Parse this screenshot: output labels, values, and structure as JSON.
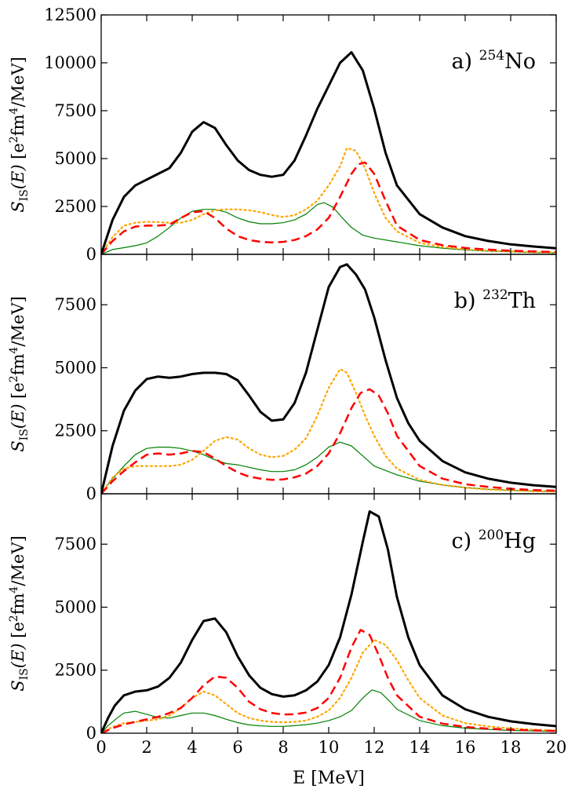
{
  "chart_data": {
    "type": "line",
    "xlabel": "E [MeV]",
    "x_ticks": [
      "0",
      "2",
      "4",
      "6",
      "8",
      "10",
      "12",
      "14",
      "16",
      "18",
      "20"
    ],
    "xlim": [
      0,
      20
    ],
    "ylabel": {
      "main": "S",
      "sub": "IS",
      "arg": "(E)",
      "units_open": "[e",
      "units_exp1": "2",
      "units_mid": "fm",
      "units_exp2": "4",
      "units_close": "/MeV]"
    },
    "series_styles": [
      {
        "name": "total",
        "color": "#000000",
        "dash": "solid"
      },
      {
        "name": "dotted-orange",
        "color": "#ffa500",
        "dash": "dotted"
      },
      {
        "name": "dashed-red",
        "color": "#ff0000",
        "dash": "dashed"
      },
      {
        "name": "thin-green",
        "color": "#008000",
        "dash": "solid"
      }
    ],
    "panels": [
      {
        "label_prefix": "a)",
        "label_mass": "254",
        "label_element": "No",
        "ylim": [
          0,
          12500
        ],
        "y_ticks": [
          "0",
          "2500",
          "5000",
          "7500",
          "10000",
          "12500"
        ],
        "series": [
          {
            "name": "total",
            "x": [
              0,
              0.5,
              1,
              1.5,
              2,
              2.5,
              3,
              3.5,
              4,
              4.5,
              5,
              5.5,
              6,
              6.5,
              7,
              7.5,
              8,
              8.5,
              9,
              9.5,
              10,
              10.5,
              11,
              11.5,
              12,
              12.5,
              13,
              14,
              15,
              16,
              17,
              18,
              19,
              20
            ],
            "y": [
              0,
              1800,
              3000,
              3600,
              3900,
              4200,
              4500,
              5300,
              6400,
              6900,
              6600,
              5700,
              4900,
              4400,
              4150,
              4050,
              4150,
              4900,
              6200,
              7600,
              8800,
              10000,
              10550,
              9600,
              7600,
              5300,
              3600,
              2100,
              1400,
              950,
              700,
              520,
              410,
              320
            ]
          },
          {
            "name": "dotted-orange",
            "x": [
              0,
              0.5,
              1,
              1.5,
              2,
              2.5,
              3,
              3.5,
              4,
              4.5,
              5,
              5.5,
              6,
              6.5,
              7,
              7.5,
              8,
              8.5,
              9,
              9.5,
              10,
              10.5,
              10.8,
              11.2,
              11.6,
              12,
              12.5,
              13,
              14,
              15,
              16,
              17,
              18,
              19,
              20
            ],
            "y": [
              0,
              900,
              1500,
              1650,
              1700,
              1680,
              1650,
              1650,
              1800,
              2100,
              2300,
              2350,
              2350,
              2300,
              2200,
              2050,
              1950,
              2050,
              2350,
              2800,
              3600,
              4600,
              5550,
              5400,
              4500,
              3200,
              1900,
              1200,
              600,
              380,
              260,
              190,
              150,
              120,
              100
            ]
          },
          {
            "name": "dashed-red",
            "x": [
              0,
              0.5,
              1,
              1.5,
              2,
              2.5,
              3,
              3.5,
              4,
              4.5,
              5,
              5.5,
              6,
              6.5,
              7,
              7.5,
              8,
              8.5,
              9,
              9.5,
              10,
              10.5,
              11,
              11.3,
              11.6,
              12,
              12.5,
              13,
              14,
              15,
              16,
              17,
              18,
              19,
              20
            ],
            "y": [
              0,
              700,
              1200,
              1450,
              1500,
              1500,
              1550,
              1900,
              2200,
              2250,
              1900,
              1350,
              950,
              750,
              650,
              620,
              650,
              750,
              950,
              1300,
              1900,
              3000,
              4200,
              4700,
              4800,
              4200,
              2800,
              1500,
              750,
              480,
              330,
              250,
              190,
              150,
              120
            ]
          },
          {
            "name": "thin-green",
            "x": [
              0,
              0.5,
              1,
              1.5,
              2,
              2.5,
              3,
              3.5,
              4,
              4.5,
              5,
              5.5,
              6,
              6.5,
              7,
              7.5,
              8,
              8.5,
              9,
              9.5,
              9.8,
              10.2,
              10.6,
              11,
              11.5,
              12,
              13,
              14,
              15,
              16,
              17,
              18,
              19,
              20
            ],
            "y": [
              0,
              250,
              350,
              450,
              600,
              950,
              1400,
              1900,
              2250,
              2350,
              2350,
              2200,
              1900,
              1700,
              1600,
              1600,
              1650,
              1800,
              2100,
              2600,
              2700,
              2450,
              1900,
              1400,
              1000,
              850,
              650,
              450,
              320,
              230,
              170,
              130,
              100,
              80
            ]
          }
        ]
      },
      {
        "label_prefix": "b)",
        "label_mass": "232",
        "label_element": "Th",
        "ylim": [
          0,
          9500
        ],
        "y_ticks": [
          "0",
          "2500",
          "5000",
          "7500"
        ],
        "series": [
          {
            "name": "total",
            "x": [
              0,
              0.5,
              1,
              1.5,
              2,
              2.5,
              3,
              3.5,
              4,
              4.5,
              5,
              5.5,
              6,
              6.5,
              7,
              7.5,
              8,
              8.5,
              9,
              9.5,
              10,
              10.5,
              10.8,
              11.2,
              11.6,
              12,
              12.5,
              13,
              13.5,
              14,
              15,
              16,
              17,
              18,
              19,
              20
            ],
            "y": [
              0,
              1900,
              3300,
              4100,
              4550,
              4650,
              4600,
              4650,
              4750,
              4800,
              4800,
              4750,
              4500,
              3900,
              3250,
              2900,
              2950,
              3600,
              4800,
              6500,
              8200,
              9000,
              9100,
              8700,
              8100,
              7000,
              5300,
              3800,
              2800,
              2100,
              1300,
              850,
              600,
              440,
              340,
              270
            ]
          },
          {
            "name": "dotted-orange",
            "x": [
              0,
              0.5,
              1,
              1.5,
              2,
              2.5,
              3,
              3.5,
              4,
              4.5,
              5,
              5.5,
              6,
              6.5,
              7,
              7.5,
              8,
              8.5,
              9,
              9.5,
              10,
              10.5,
              10.8,
              11.2,
              11.6,
              12,
              12.5,
              13,
              14,
              15,
              16,
              17,
              18,
              19,
              20
            ],
            "y": [
              0,
              650,
              1000,
              1100,
              1100,
              1100,
              1100,
              1150,
              1350,
              1700,
              2100,
              2250,
              2150,
              1800,
              1550,
              1450,
              1500,
              1750,
              2200,
              3100,
              4200,
              4950,
              4800,
              4000,
              3100,
              2300,
              1500,
              1000,
              550,
              350,
              240,
              170,
              130,
              100,
              80
            ]
          },
          {
            "name": "dashed-red",
            "x": [
              0,
              0.5,
              1,
              1.5,
              2,
              2.5,
              3,
              3.5,
              4,
              4.5,
              5,
              5.5,
              6,
              6.5,
              7,
              7.5,
              8,
              8.5,
              9,
              9.5,
              10,
              10.5,
              11,
              11.4,
              11.8,
              12.2,
              12.6,
              13,
              14,
              15,
              16,
              17,
              18,
              19,
              20
            ],
            "y": [
              0,
              500,
              900,
              1250,
              1550,
              1600,
              1550,
              1600,
              1700,
              1650,
              1400,
              1100,
              850,
              680,
              600,
              550,
              570,
              650,
              800,
              1100,
              1600,
              2400,
              3400,
              4000,
              4150,
              3900,
              3200,
              2300,
              1100,
              600,
              380,
              270,
              200,
              150,
              120
            ]
          },
          {
            "name": "thin-green",
            "x": [
              0,
              0.5,
              1,
              1.5,
              2,
              2.5,
              3,
              3.5,
              4,
              4.5,
              5,
              5.5,
              6,
              6.5,
              7,
              7.5,
              8,
              8.5,
              9,
              9.5,
              10,
              10.5,
              11,
              11.5,
              12,
              13,
              14,
              15,
              16,
              17,
              18,
              19,
              20
            ],
            "y": [
              0,
              600,
              1100,
              1550,
              1800,
              1850,
              1850,
              1800,
              1700,
              1550,
              1350,
              1200,
              1150,
              1050,
              950,
              880,
              880,
              950,
              1150,
              1450,
              1850,
              2050,
              1900,
              1500,
              1100,
              750,
              500,
              350,
              250,
              180,
              140,
              110,
              90
            ]
          }
        ]
      },
      {
        "label_prefix": "c)",
        "label_mass": "200",
        "label_element": "Hg",
        "ylim": [
          0,
          9500
        ],
        "y_ticks": [
          "0",
          "2500",
          "5000",
          "7500"
        ],
        "series": [
          {
            "name": "total",
            "x": [
              0,
              0.3,
              0.6,
              1,
              1.5,
              2,
              2.5,
              3,
              3.5,
              4,
              4.5,
              5,
              5.5,
              6,
              6.5,
              7,
              7.5,
              8,
              8.5,
              9,
              9.5,
              10,
              10.5,
              11,
              11.5,
              11.8,
              12.2,
              12.6,
              13,
              13.5,
              14,
              15,
              16,
              17,
              18,
              19,
              20
            ],
            "y": [
              0,
              600,
              1100,
              1500,
              1650,
              1700,
              1850,
              2200,
              2800,
              3700,
              4450,
              4550,
              4000,
              3050,
              2300,
              1800,
              1550,
              1450,
              1500,
              1700,
              2050,
              2700,
              3800,
              5500,
              7600,
              8800,
              8600,
              7300,
              5400,
              3800,
              2700,
              1500,
              950,
              650,
              470,
              360,
              280
            ]
          },
          {
            "name": "dotted-orange",
            "x": [
              0,
              0.5,
              1,
              1.5,
              2,
              2.5,
              3,
              3.5,
              4,
              4.5,
              5,
              5.5,
              6,
              6.5,
              7,
              7.5,
              8,
              8.5,
              9,
              9.5,
              10,
              10.5,
              11,
              11.5,
              12,
              12.5,
              13,
              13.5,
              14,
              15,
              16,
              17,
              18,
              19,
              20
            ],
            "y": [
              0,
              250,
              400,
              450,
              500,
              550,
              700,
              1000,
              1400,
              1650,
              1500,
              1150,
              800,
              600,
              500,
              450,
              430,
              450,
              500,
              650,
              900,
              1400,
              2200,
              3200,
              3700,
              3500,
              2900,
              2100,
              1400,
              700,
              400,
              270,
              190,
              140,
              110
            ]
          },
          {
            "name": "dashed-red",
            "x": [
              0,
              0.5,
              1,
              1.5,
              2,
              2.5,
              3,
              3.5,
              4,
              4.5,
              5,
              5.5,
              6,
              6.5,
              7,
              7.5,
              8,
              8.5,
              9,
              9.5,
              10,
              10.5,
              11,
              11.4,
              11.8,
              12.2,
              12.6,
              13,
              14,
              15,
              16,
              17,
              18,
              19,
              20
            ],
            "y": [
              0,
              200,
              350,
              450,
              550,
              650,
              800,
              1000,
              1400,
              1900,
              2250,
              2200,
              1800,
              1250,
              950,
              800,
              740,
              750,
              820,
              1000,
              1400,
              2200,
              3400,
              4100,
              3900,
              3100,
              2200,
              1500,
              650,
              380,
              250,
              180,
              140,
              110,
              90
            ]
          },
          {
            "name": "thin-green",
            "x": [
              0,
              0.3,
              0.7,
              1,
              1.5,
              2,
              2.5,
              3,
              3.5,
              4,
              4.5,
              5,
              5.5,
              6,
              6.5,
              7,
              7.5,
              8,
              8.5,
              9,
              9.5,
              10,
              10.5,
              11,
              11.5,
              11.9,
              12.3,
              12.7,
              13,
              14,
              15,
              16,
              17,
              18,
              19,
              20
            ],
            "y": [
              0,
              300,
              600,
              800,
              870,
              750,
              620,
              600,
              700,
              800,
              800,
              700,
              550,
              420,
              330,
              290,
              270,
              270,
              300,
              340,
              400,
              500,
              650,
              900,
              1400,
              1720,
              1600,
              1250,
              950,
              500,
              300,
              200,
              150,
              110,
              90,
              70
            ]
          }
        ]
      }
    ]
  }
}
